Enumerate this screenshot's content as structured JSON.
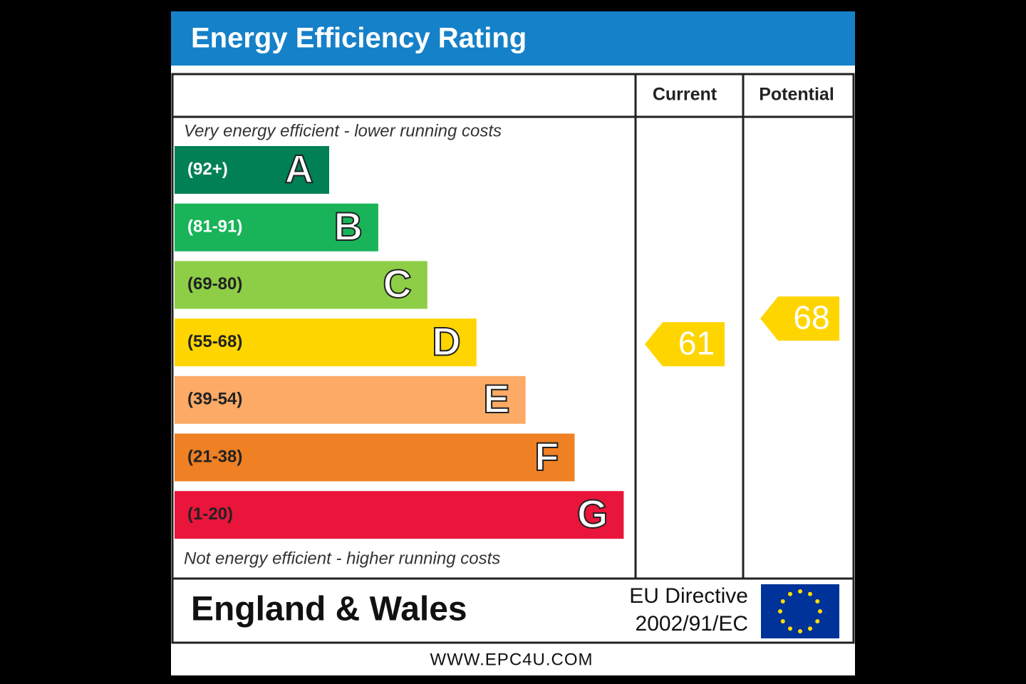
{
  "chart_data": {
    "type": "epc",
    "title": "Energy Efficiency Rating",
    "columns": [
      "Current",
      "Potential"
    ],
    "top_note": "Very energy efficient - lower running costs",
    "bottom_note": "Not energy efficient - higher running costs",
    "bands": [
      {
        "range": "(92+)",
        "letter": "A",
        "color": "#008054"
      },
      {
        "range": "(81-91)",
        "letter": "B",
        "color": "#19b459"
      },
      {
        "range": "(69-80)",
        "letter": "C",
        "color": "#8dce46"
      },
      {
        "range": "(55-68)",
        "letter": "D",
        "color": "#ffd500"
      },
      {
        "range": "(39-54)",
        "letter": "E",
        "color": "#fcaa65"
      },
      {
        "range": "(21-38)",
        "letter": "F",
        "color": "#ef8023"
      },
      {
        "range": "(1-20)",
        "letter": "G",
        "color": "#e9153b"
      }
    ],
    "current": 61,
    "potential": 68,
    "region": "England & Wales",
    "directive": [
      "EU Directive",
      "2002/91/EC"
    ],
    "website": "WWW.EPC4U.COM"
  }
}
